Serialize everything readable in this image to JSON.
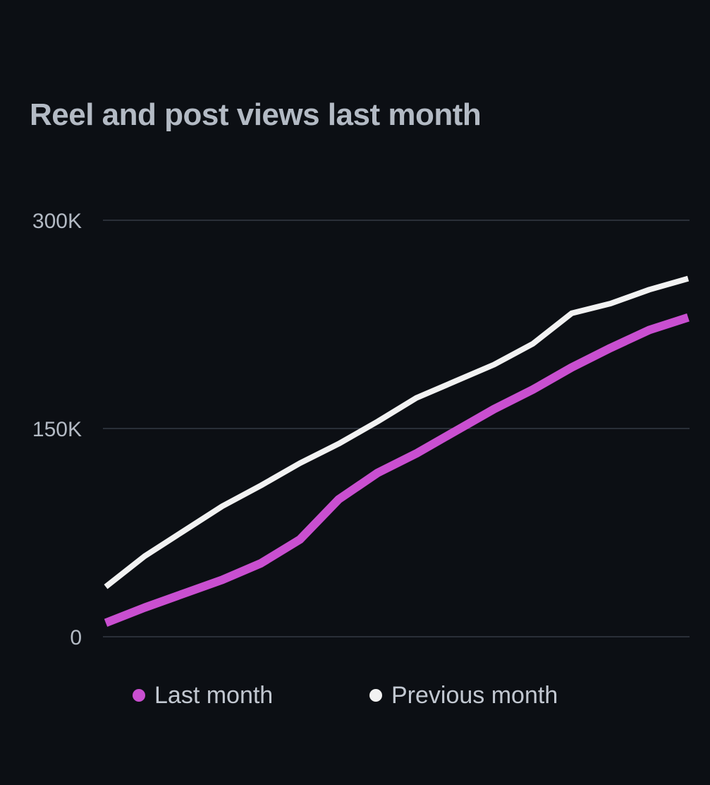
{
  "chart_data": {
    "type": "line",
    "title": "Reel and post views last month",
    "xlabel": "",
    "ylabel": "",
    "ylim": [
      0,
      300000
    ],
    "yticks": [
      {
        "value": 0,
        "label": "0"
      },
      {
        "value": 150000,
        "label": "150K"
      },
      {
        "value": 300000,
        "label": "300K"
      }
    ],
    "x": [
      1,
      2,
      3,
      4,
      5,
      6,
      7,
      8,
      9,
      10,
      11,
      12,
      13,
      14,
      15,
      16
    ],
    "series": [
      {
        "name": "Previous month",
        "color": "#f2f2f2",
        "values": [
          36000,
          58000,
          76000,
          94000,
          109000,
          125000,
          139000,
          155000,
          172000,
          184000,
          196000,
          211000,
          233000,
          240000,
          250000,
          258000
        ]
      },
      {
        "name": "Last month",
        "color": "#c94fd0",
        "values": [
          10000,
          21000,
          31000,
          41000,
          53000,
          70000,
          99000,
          118000,
          132000,
          148000,
          164000,
          178000,
          194000,
          208000,
          221000,
          230000
        ]
      }
    ],
    "legend": [
      {
        "label": "Last month",
        "color": "#c94fd0"
      },
      {
        "label": "Previous month",
        "color": "#f2f2f2"
      }
    ],
    "grid": true,
    "legend_position": "bottom"
  }
}
